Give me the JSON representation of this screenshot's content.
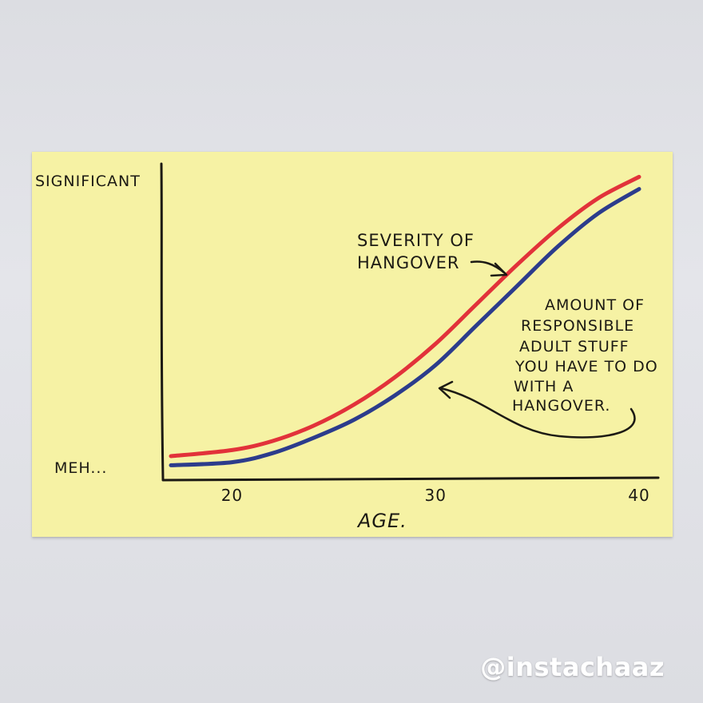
{
  "chart_data": {
    "type": "line",
    "xlabel": "AGE.",
    "x_ticks": [
      20,
      30,
      40
    ],
    "xlim": [
      17,
      40
    ],
    "y_tick_labels": {
      "top": "SIGNIFICANT",
      "bottom": "MEH..."
    },
    "ylim": [
      0,
      1
    ],
    "series": [
      {
        "name": "SEVERITY OF HANGOVER",
        "color": "#e2323a",
        "x": [
          17,
          20,
          22,
          24,
          26,
          28,
          30,
          32,
          34,
          36,
          38,
          40
        ],
        "y": [
          0.05,
          0.07,
          0.1,
          0.15,
          0.22,
          0.31,
          0.42,
          0.55,
          0.68,
          0.8,
          0.9,
          0.97
        ]
      },
      {
        "name": "AMOUNT OF RESPONSIBLE ADULT STUFF YOU HAVE TO DO WITH A HANGOVER.",
        "color": "#2c3c8c",
        "x": [
          17,
          20,
          22,
          24,
          26,
          28,
          30,
          32,
          34,
          36,
          38,
          40
        ],
        "y": [
          0.02,
          0.03,
          0.06,
          0.11,
          0.17,
          0.25,
          0.35,
          0.48,
          0.61,
          0.74,
          0.85,
          0.93
        ]
      }
    ]
  },
  "annotations": {
    "severity_lines": [
      "SEVERITY OF",
      "HANGOVER"
    ],
    "responsible_lines": [
      "AMOUNT OF",
      "RESPONSIBLE",
      "ADULT STUFF",
      "YOU HAVE TO DO",
      "WITH A",
      "HANGOVER."
    ]
  },
  "watermark": "@instachaaz"
}
